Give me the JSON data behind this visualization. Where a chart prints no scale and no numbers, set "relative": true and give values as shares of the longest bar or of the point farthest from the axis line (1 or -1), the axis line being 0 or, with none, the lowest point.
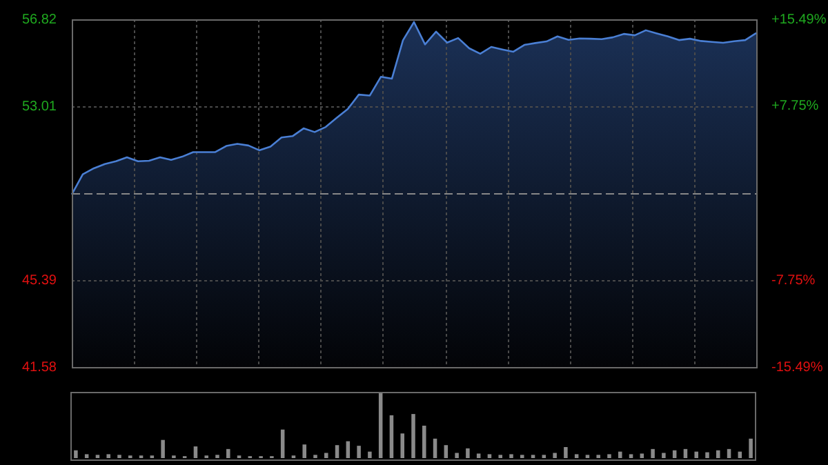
{
  "chart_data": [
    {
      "type": "area",
      "categories": [
        null,
        null,
        null,
        null,
        null,
        null,
        null,
        null,
        null,
        null,
        null,
        null,
        null,
        null,
        null,
        null,
        null,
        null,
        null,
        null,
        null,
        null,
        null,
        null,
        null,
        null,
        null,
        null,
        null,
        null,
        null,
        null,
        null,
        null,
        null,
        null,
        null,
        null,
        null,
        null,
        null,
        null,
        null,
        null,
        null,
        null,
        null,
        null,
        null,
        null,
        null,
        null,
        null,
        null,
        null,
        null,
        null,
        null,
        null,
        null,
        null,
        null,
        null
      ],
      "series": [
        {
          "color": "#4a7fd4",
          "values": [
            49.14,
            50.03,
            50.29,
            50.48,
            50.6,
            50.77,
            50.6,
            50.62,
            50.77,
            50.66,
            50.8,
            51.0,
            51.0,
            51.0,
            51.27,
            51.36,
            51.29,
            51.08,
            51.24,
            51.64,
            51.7,
            52.04,
            51.88,
            52.1,
            52.5,
            52.89,
            53.52,
            53.48,
            54.3,
            54.22,
            55.9,
            56.7,
            55.72,
            56.28,
            55.8,
            56.0,
            55.55,
            55.31,
            55.61,
            55.5,
            55.4,
            55.7,
            55.78,
            55.85,
            56.07,
            55.92,
            55.98,
            55.97,
            55.95,
            56.03,
            56.18,
            56.12,
            56.34,
            56.2,
            56.07,
            55.91,
            55.97,
            55.87,
            55.83,
            55.79,
            55.86,
            55.91,
            56.22
          ]
        }
      ],
      "ylim": [
        41.58,
        56.82
      ],
      "yticks": [
        41.58,
        45.39,
        53.01,
        56.82
      ],
      "y2lim": [
        -15.49,
        15.49
      ],
      "y2ticks": [
        {
          "value": -15.49,
          "label": "-15.49%"
        },
        {
          "value": -7.75,
          "label": "-7.75%"
        },
        {
          "value": 7.75,
          "label": "+7.75%"
        },
        {
          "value": 15.49,
          "label": "+15.49%"
        }
      ],
      "ref_lines": [
        {
          "axis": "y",
          "value": 49.2,
          "color": "#888888",
          "line_style": "dashed"
        }
      ],
      "grid": true,
      "legend": false,
      "tick_labels": "y",
      "marker": "none",
      "line_style": "solid"
    },
    {
      "type": "bar",
      "relative": true,
      "categories": [
        null,
        null,
        null,
        null,
        null,
        null,
        null,
        null,
        null,
        null,
        null,
        null,
        null,
        null,
        null,
        null,
        null,
        null,
        null,
        null,
        null,
        null,
        null,
        null,
        null,
        null,
        null,
        null,
        null,
        null,
        null,
        null,
        null,
        null,
        null,
        null,
        null,
        null,
        null,
        null,
        null,
        null,
        null,
        null,
        null,
        null,
        null,
        null,
        null,
        null,
        null,
        null,
        null,
        null,
        null,
        null,
        null,
        null,
        null,
        null,
        null,
        null,
        null
      ],
      "series": [
        {
          "color": "#8a8a8a",
          "values": [
            0.12,
            0.06,
            0.05,
            0.06,
            0.05,
            0.04,
            0.04,
            0.04,
            0.28,
            0.04,
            0.03,
            0.18,
            0.04,
            0.05,
            0.14,
            0.04,
            0.03,
            0.03,
            0.03,
            0.44,
            0.04,
            0.21,
            0.05,
            0.08,
            0.2,
            0.26,
            0.19,
            0.1,
            1.0,
            0.66,
            0.38,
            0.68,
            0.5,
            0.3,
            0.2,
            0.08,
            0.15,
            0.07,
            0.06,
            0.05,
            0.06,
            0.05,
            0.05,
            0.05,
            0.08,
            0.17,
            0.06,
            0.05,
            0.05,
            0.06,
            0.1,
            0.06,
            0.07,
            0.14,
            0.08,
            0.12,
            0.14,
            0.1,
            0.09,
            0.12,
            0.14,
            0.1,
            0.3
          ]
        }
      ],
      "legend": false,
      "tick_labels": false
    }
  ]
}
